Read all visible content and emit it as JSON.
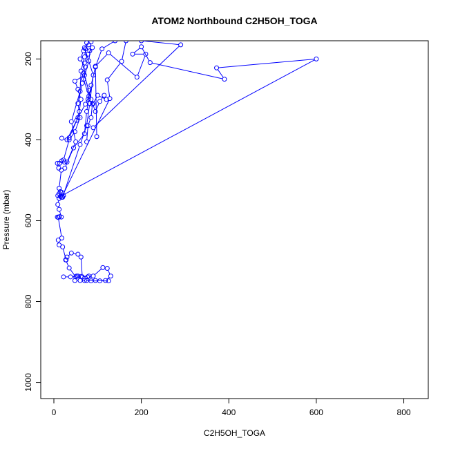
{
  "chart_data": {
    "type": "line",
    "title": "ATOM2 Northbound C2H5OH_TOGA",
    "xlabel": "C2H5OH_TOGA",
    "ylabel": "Pressure (mbar)",
    "xlim": [
      -30,
      856
    ],
    "ylim": [
      1040,
      155
    ],
    "y_reversed": true,
    "xticks": [
      0,
      200,
      400,
      600,
      800
    ],
    "yticks": [
      200,
      400,
      600,
      800,
      1000
    ],
    "grid": false,
    "legend": "none",
    "series_color": "#0000ff",
    "marker": "open-circle",
    "series": [
      {
        "points": [
          [
            22,
            739
          ],
          [
            38,
            739
          ],
          [
            55,
            737
          ],
          [
            62,
            738
          ],
          [
            77,
            739
          ],
          [
            90,
            737
          ],
          [
            112,
            716
          ],
          [
            122,
            718
          ],
          [
            130,
            737
          ],
          [
            118,
            748
          ],
          [
            95,
            748
          ],
          [
            75,
            748
          ],
          [
            60,
            748
          ],
          [
            48,
            748
          ],
          [
            52,
            737
          ],
          [
            65,
            739
          ],
          [
            80,
            737
          ],
          [
            70,
            748
          ],
          [
            85,
            749
          ],
          [
            105,
            749
          ],
          [
            125,
            749
          ]
        ]
      },
      {
        "points": [
          [
            65,
            739
          ],
          [
            62,
            690
          ],
          [
            55,
            683
          ],
          [
            40,
            680
          ],
          [
            30,
            690
          ],
          [
            27,
            697
          ],
          [
            35,
            717
          ],
          [
            50,
            739
          ]
        ]
      },
      {
        "points": [
          [
            28,
            697
          ],
          [
            20,
            665
          ],
          [
            12,
            660
          ],
          [
            10,
            648
          ],
          [
            18,
            643
          ],
          [
            10,
            592
          ],
          [
            8,
            591
          ],
          [
            13,
            590
          ],
          [
            17,
            591
          ],
          [
            12,
            572
          ],
          [
            9,
            560
          ],
          [
            12,
            545
          ],
          [
            9,
            538
          ],
          [
            12,
            533
          ],
          [
            18,
            530
          ],
          [
            22,
            538
          ],
          [
            18,
            542
          ],
          [
            15,
            528
          ],
          [
            12,
            520
          ],
          [
            17,
            475
          ],
          [
            11,
            470
          ],
          [
            8,
            458
          ],
          [
            13,
            458
          ],
          [
            18,
            452
          ],
          [
            24,
            455
          ]
        ]
      },
      {
        "points": [
          [
            20,
            542
          ],
          [
            60,
            412
          ],
          [
            75,
            365
          ],
          [
            82,
            310
          ],
          [
            90,
            240
          ],
          [
            70,
            172
          ],
          [
            80,
            165
          ],
          [
            88,
            172
          ],
          [
            78,
            188
          ],
          [
            70,
            210
          ],
          [
            68,
            235
          ],
          [
            80,
            278
          ],
          [
            78,
            300
          ],
          [
            88,
            312
          ],
          [
            85,
            345
          ],
          [
            78,
            365
          ],
          [
            75,
            405
          ]
        ]
      },
      {
        "points": [
          [
            18,
            542
          ],
          [
            128,
            298
          ],
          [
            122,
            252
          ],
          [
            155,
            206
          ],
          [
            165,
            155
          ]
        ]
      },
      {
        "points": [
          [
            15,
            540
          ],
          [
            600,
            200
          ],
          [
            372,
            222
          ],
          [
            390,
            250
          ],
          [
            220,
            209
          ],
          [
            200,
            170
          ],
          [
            180,
            188
          ],
          [
            210,
            188
          ],
          [
            190,
            245
          ],
          [
            125,
            185
          ],
          [
            95,
            218
          ],
          [
            98,
            392
          ]
        ]
      },
      {
        "points": [
          [
            90,
            370
          ],
          [
            290,
            165
          ],
          [
            200,
            155
          ]
        ]
      },
      {
        "points": [
          [
            18,
            396
          ],
          [
            30,
            400
          ],
          [
            52,
            352
          ],
          [
            58,
            330
          ],
          [
            62,
            300
          ],
          [
            55,
            275
          ],
          [
            48,
            255
          ],
          [
            70,
            240
          ],
          [
            85,
            300
          ],
          [
            95,
            330
          ],
          [
            105,
            305
          ],
          [
            115,
            290
          ],
          [
            120,
            300
          ],
          [
            100,
            290
          ],
          [
            90,
            310
          ]
        ]
      },
      {
        "points": [
          [
            35,
            395
          ],
          [
            55,
            345
          ],
          [
            72,
            312
          ],
          [
            80,
            292
          ],
          [
            68,
            250
          ],
          [
            72,
            220
          ],
          [
            60,
            200
          ],
          [
            68,
            180
          ],
          [
            72,
            175
          ],
          [
            82,
            180
          ]
        ]
      },
      {
        "points": [
          [
            25,
            470
          ],
          [
            45,
            420
          ],
          [
            70,
            385
          ],
          [
            75,
            330
          ],
          [
            85,
            265
          ],
          [
            95,
            220
          ],
          [
            110,
            175
          ],
          [
            140,
            155
          ]
        ]
      },
      {
        "points": [
          [
            30,
            455
          ],
          [
            50,
            405
          ],
          [
            40,
            355
          ],
          [
            60,
            280
          ],
          [
            62,
            230
          ],
          [
            70,
            195
          ],
          [
            75,
            160
          ]
        ]
      },
      {
        "points": [
          [
            22,
            450
          ],
          [
            35,
            400
          ],
          [
            48,
            380
          ],
          [
            60,
            345
          ],
          [
            55,
            310
          ],
          [
            65,
            260
          ],
          [
            80,
            205
          ],
          [
            85,
            158
          ]
        ]
      }
    ]
  }
}
